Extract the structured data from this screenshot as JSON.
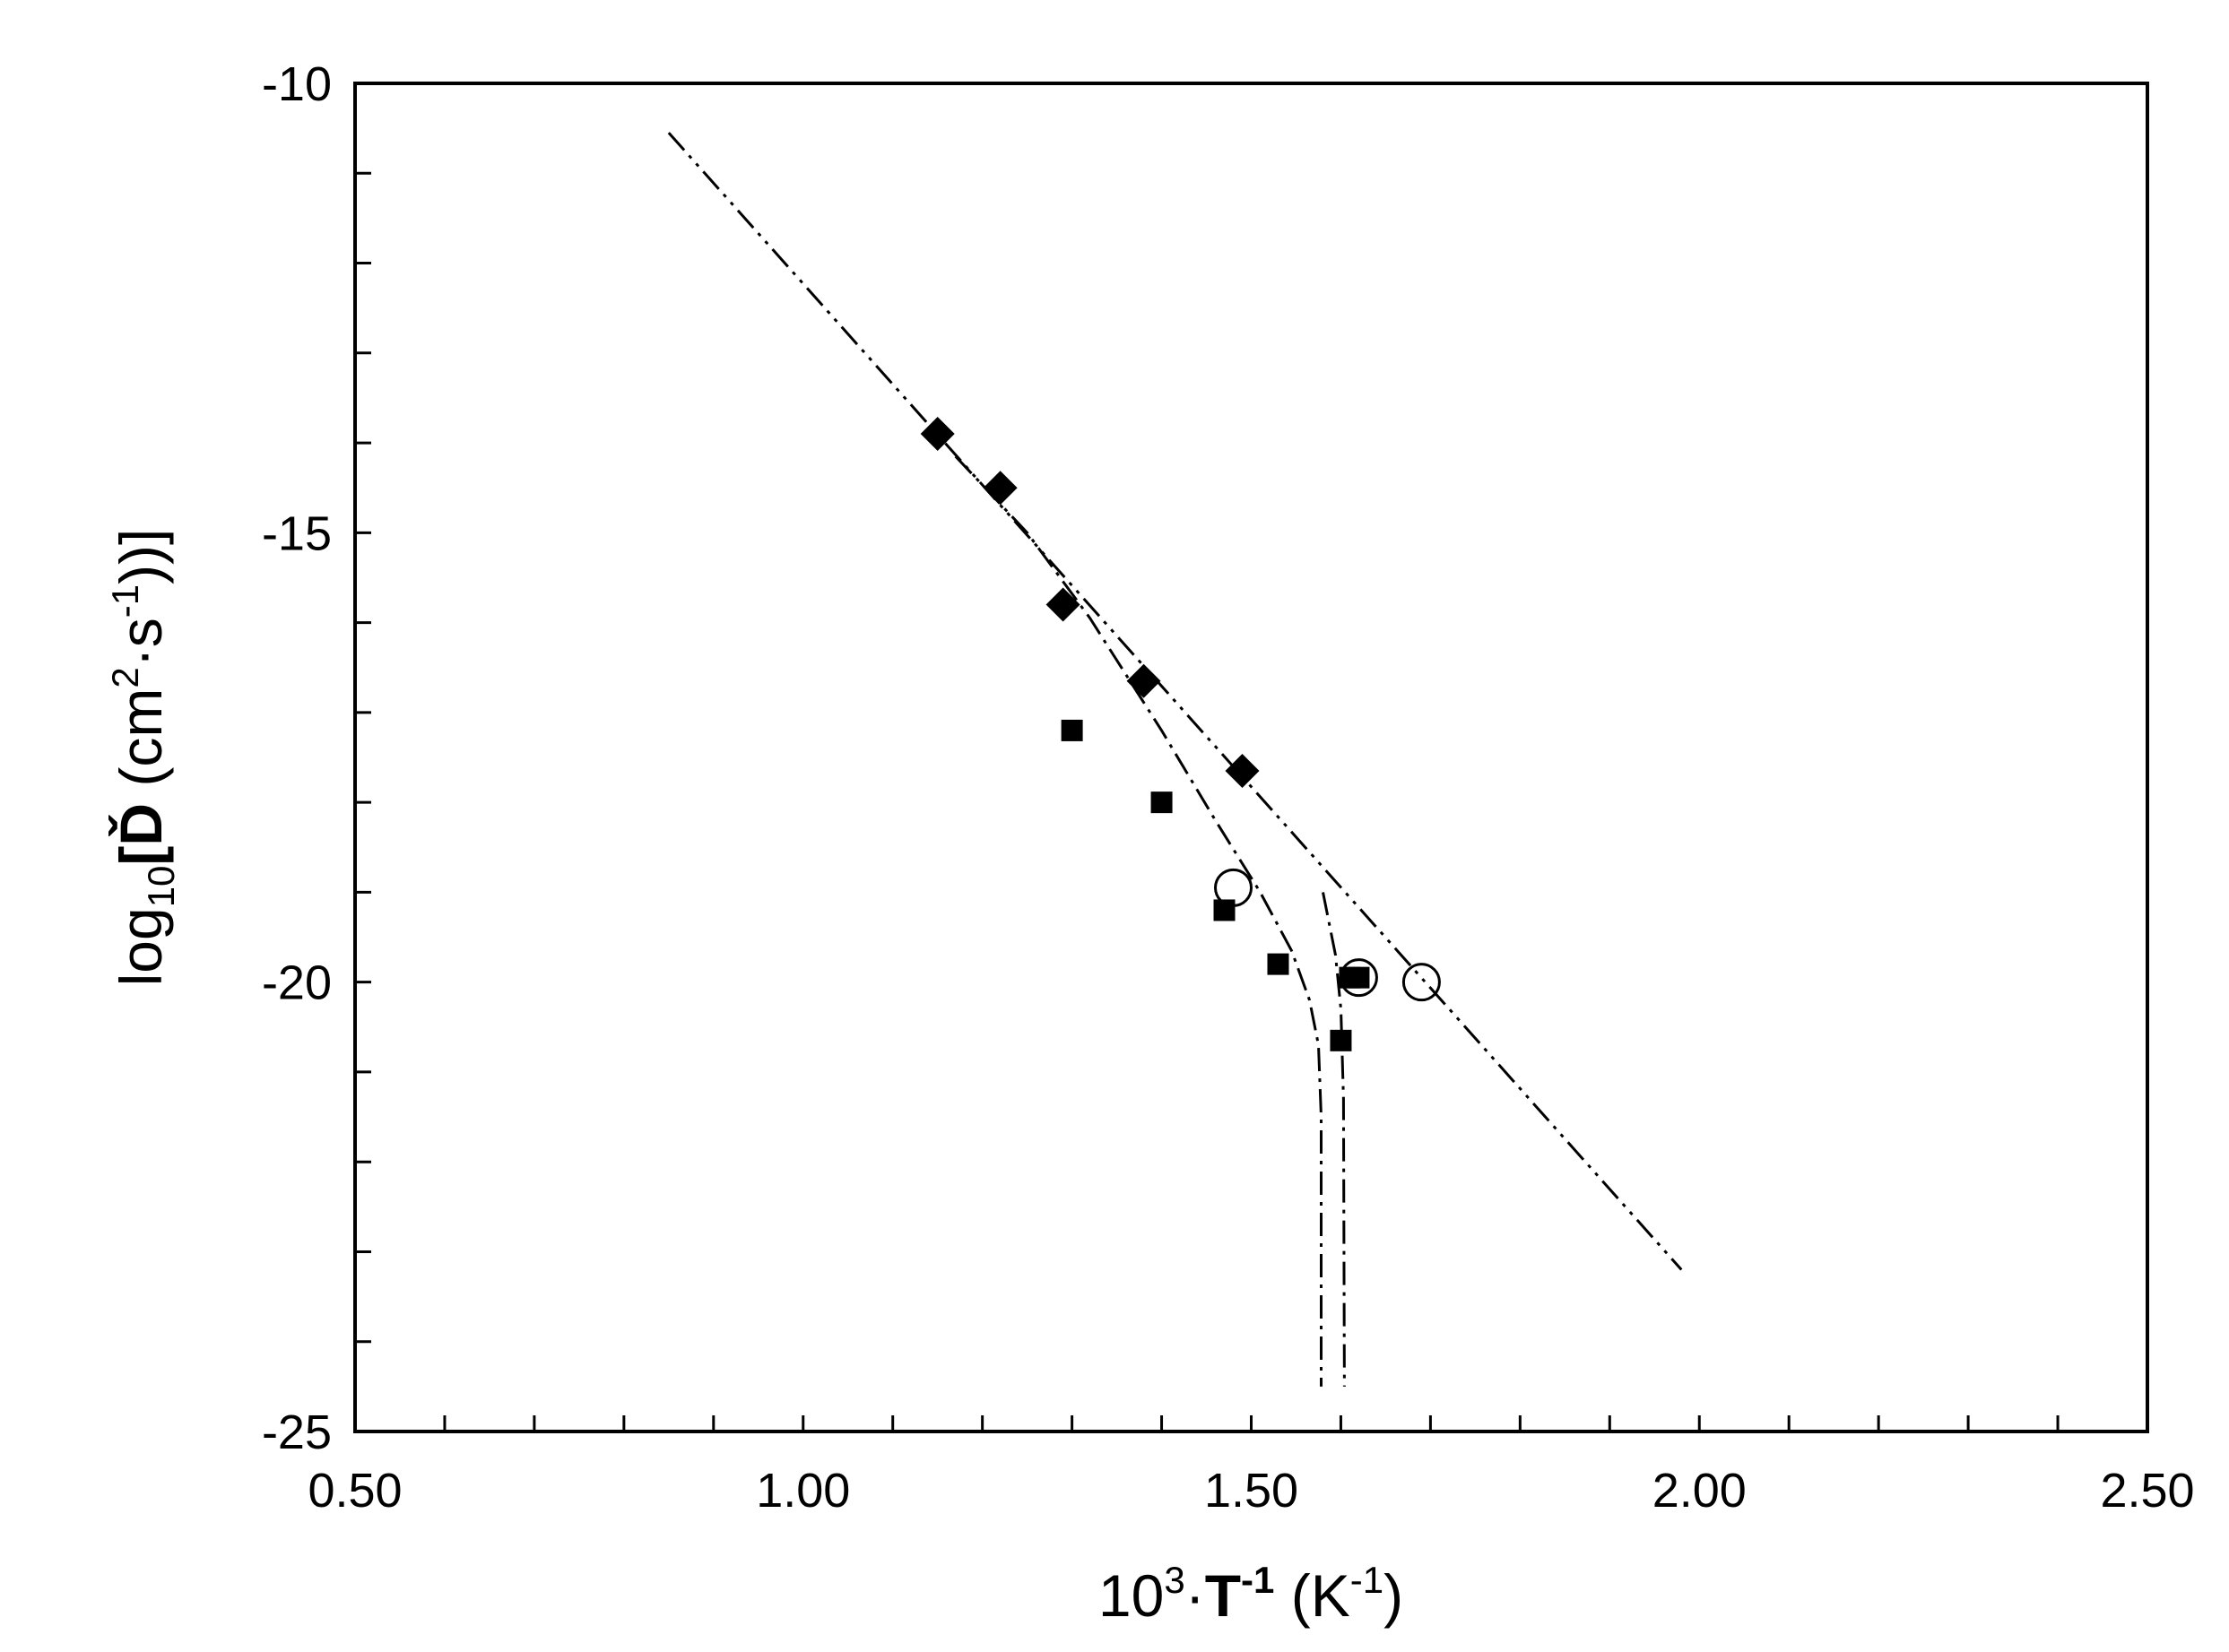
{
  "chart_data": {
    "type": "scatter",
    "title": "",
    "xlabel": {
      "base": "10",
      "exp1": "3",
      "dot": "·",
      "bold_T": "T",
      "bold_exp": "-1",
      "unit_open": " (K",
      "unit_exp": "-1",
      "unit_close": ")"
    },
    "ylabel": {
      "log": "log",
      "sub": "10",
      "bold_D": "[Ď",
      "unit_open": " (cm",
      "unit_exp1": "2",
      "unit_mid": "·s",
      "unit_exp2": "-1",
      "unit_close": "))]"
    },
    "xlim": [
      0.5,
      2.5
    ],
    "ylim": [
      -25,
      -10
    ],
    "x_ticks": [
      "0.50",
      "1.00",
      "1.50",
      "2.00",
      "2.50"
    ],
    "y_ticks": [
      "-10",
      "-15",
      "-20",
      "-25"
    ],
    "grid": false,
    "legend": "none",
    "series": [
      {
        "marker": "filled-diamond",
        "x": [
          1.15,
          1.22,
          1.29,
          1.38,
          1.49
        ],
        "y": [
          -13.9,
          -14.5,
          -15.8,
          -16.65,
          -17.65
        ]
      },
      {
        "marker": "filled-square",
        "x": [
          1.3,
          1.4,
          1.47,
          1.53,
          1.6,
          1.61,
          1.62
        ],
        "y": [
          -17.2,
          -18.0,
          -19.2,
          -19.8,
          -20.65,
          -19.95,
          -19.95
        ]
      },
      {
        "marker": "open-circle",
        "x": [
          1.48,
          1.62,
          1.69
        ],
        "y": [
          -18.95,
          -19.95,
          -20.0
        ]
      }
    ],
    "lines": [
      {
        "style": "dash-dot-dot",
        "x": [
          0.85,
          1.98
        ],
        "y": [
          -10.55,
          -23.2
        ]
      },
      {
        "style": "dash-dot",
        "x": [
          1.17,
          1.25,
          1.32,
          1.4,
          1.46,
          1.51,
          1.545,
          1.565,
          1.575,
          1.578,
          1.578
        ],
        "y": [
          -14.15,
          -15.0,
          -15.95,
          -17.2,
          -18.2,
          -19.0,
          -19.65,
          -20.2,
          -20.7,
          -21.5,
          -24.5
        ]
      },
      {
        "style": "dash-dot",
        "x": [
          1.58,
          1.594,
          1.6,
          1.603,
          1.604
        ],
        "y": [
          -19.0,
          -19.7,
          -20.3,
          -21.3,
          -24.5
        ]
      }
    ]
  }
}
